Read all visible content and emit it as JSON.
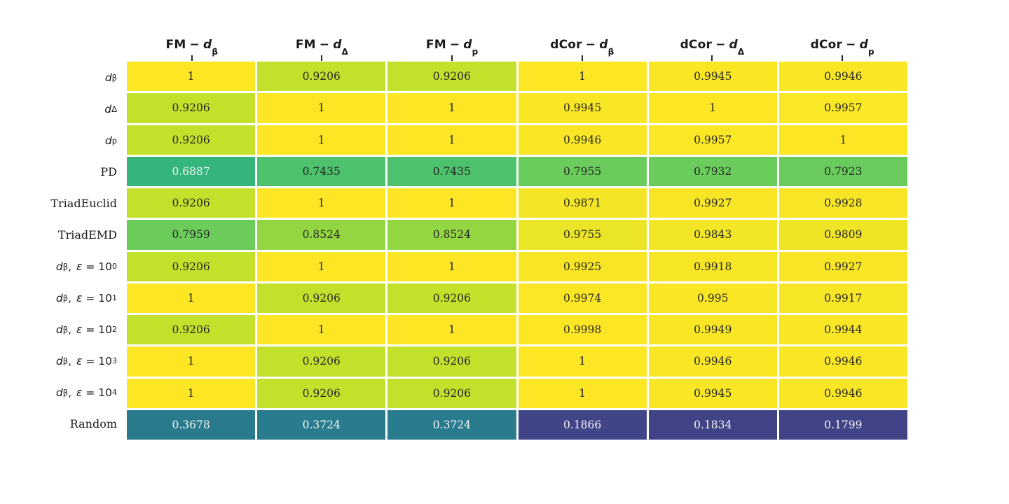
{
  "figure": {
    "background": "#ffffff",
    "header_separator": "−"
  },
  "heatmap": {
    "columns": [
      {
        "prefix": "FM",
        "base": "d",
        "sub": "β"
      },
      {
        "prefix": "FM",
        "base": "d",
        "sub": "Δ"
      },
      {
        "prefix": "FM",
        "base": "d",
        "sub": "p"
      },
      {
        "prefix": "dCor",
        "base": "d",
        "sub": "β"
      },
      {
        "prefix": "dCor",
        "base": "d",
        "sub": "Δ"
      },
      {
        "prefix": "dCor",
        "base": "d",
        "sub": "p"
      }
    ],
    "rows": [
      {
        "kind": "math",
        "base": "d",
        "sub": "β"
      },
      {
        "kind": "math",
        "base": "d",
        "sub": "Δ"
      },
      {
        "kind": "math",
        "base": "d",
        "sub": "p"
      },
      {
        "kind": "text",
        "text": "PD"
      },
      {
        "kind": "text",
        "text": "TriadEuclid"
      },
      {
        "kind": "text",
        "text": "TriadEMD"
      },
      {
        "kind": "eps",
        "base": "d",
        "sub": "β",
        "eps": "ε",
        "eq": "=",
        "mant": "10",
        "exp": "0"
      },
      {
        "kind": "eps",
        "base": "d",
        "sub": "β",
        "eps": "ε",
        "eq": "=",
        "mant": "10",
        "exp": "1"
      },
      {
        "kind": "eps",
        "base": "d",
        "sub": "β",
        "eps": "ε",
        "eq": "=",
        "mant": "10",
        "exp": "2"
      },
      {
        "kind": "eps",
        "base": "d",
        "sub": "β",
        "eps": "ε",
        "eq": "=",
        "mant": "10",
        "exp": "3"
      },
      {
        "kind": "eps",
        "base": "d",
        "sub": "β",
        "eps": "ε",
        "eq": "=",
        "mant": "10",
        "exp": "4"
      },
      {
        "kind": "text",
        "text": "Random"
      }
    ]
  },
  "chart_data": {
    "type": "heatmap",
    "title": "",
    "columns": [
      "FM − d_β",
      "FM − d_Δ",
      "FM − d_p",
      "dCor − d_β",
      "dCor − d_Δ",
      "dCor − d_p"
    ],
    "rows": [
      "d_β",
      "d_Δ",
      "d_p",
      "PD",
      "TriadEuclid",
      "TriadEMD",
      "d_β, ε=10^0",
      "d_β, ε=10^1",
      "d_β, ε=10^2",
      "d_β, ε=10^3",
      "d_β, ε=10^4",
      "Random"
    ],
    "values": [
      [
        1,
        0.9206,
        0.9206,
        1,
        0.9945,
        0.9946
      ],
      [
        0.9206,
        1,
        1,
        0.9945,
        1,
        0.9957
      ],
      [
        0.9206,
        1,
        1,
        0.9946,
        0.9957,
        1
      ],
      [
        0.6887,
        0.7435,
        0.7435,
        0.7955,
        0.7932,
        0.7923
      ],
      [
        0.9206,
        1,
        1,
        0.9871,
        0.9927,
        0.9928
      ],
      [
        0.7959,
        0.8524,
        0.8524,
        0.9755,
        0.9843,
        0.9809
      ],
      [
        0.9206,
        1,
        1,
        0.9925,
        0.9918,
        0.9927
      ],
      [
        1,
        0.9206,
        0.9206,
        0.9974,
        0.995,
        0.9917
      ],
      [
        0.9206,
        1,
        1,
        0.9998,
        0.9949,
        0.9944
      ],
      [
        1,
        0.9206,
        0.9206,
        1,
        0.9946,
        0.9946
      ],
      [
        1,
        0.9206,
        0.9206,
        1,
        0.9945,
        0.9946
      ],
      [
        0.3678,
        0.3724,
        0.3724,
        0.1866,
        0.1834,
        0.1799
      ]
    ],
    "colormap": "viridis",
    "value_range": [
      0,
      1
    ],
    "gridlines": "white",
    "legend": "none"
  },
  "style": {
    "text_dark": "#262626",
    "text_light": "#f7f7f7",
    "light_text_threshold": 0.72,
    "tick_color": "#262626",
    "grid_line_color": "#ffffff",
    "viridis_anchors": [
      "#440154",
      "#482878",
      "#3E4A89",
      "#31688E",
      "#26828E",
      "#21918C",
      "#1FA188",
      "#35B779",
      "#6DCD59",
      "#B4DE2C",
      "#FDE725"
    ]
  }
}
